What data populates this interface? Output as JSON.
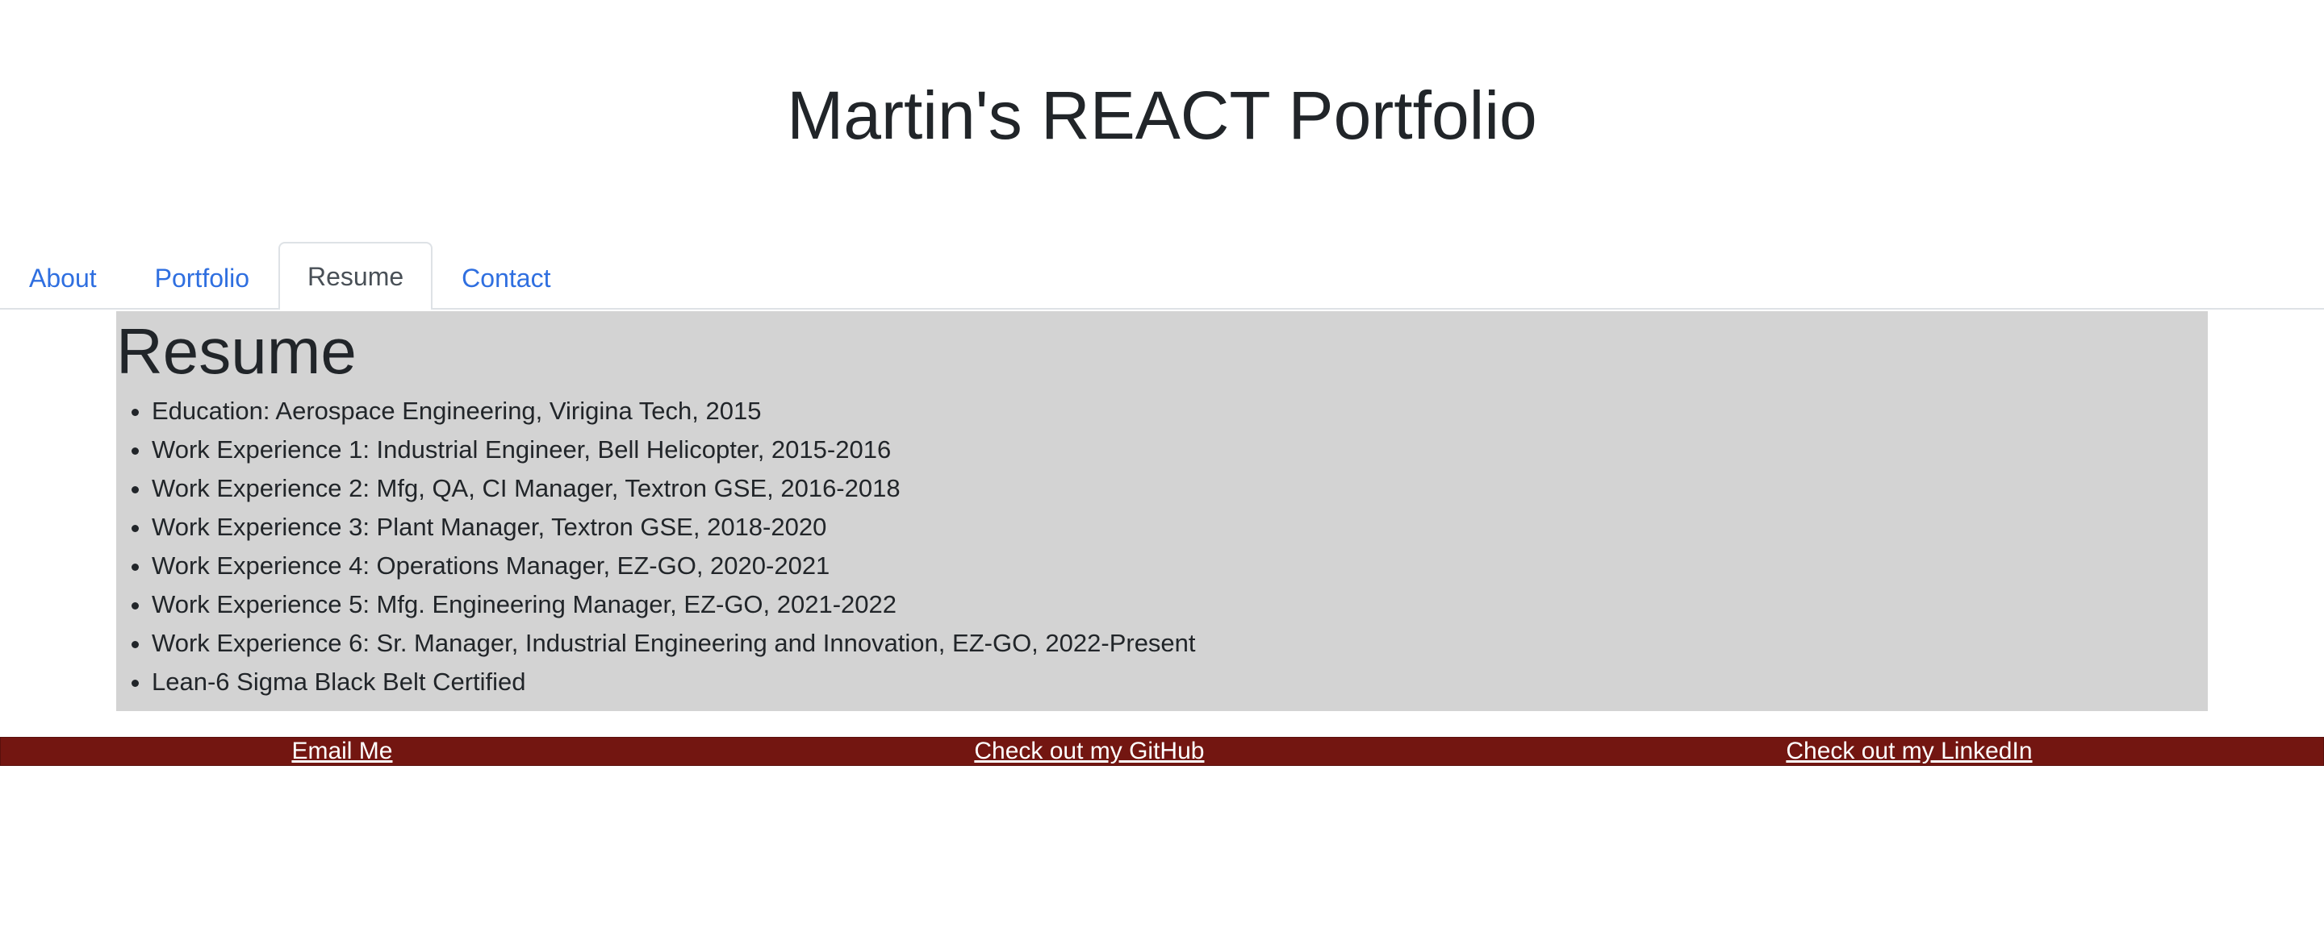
{
  "header": {
    "title": "Martin's REACT Portfolio"
  },
  "nav": {
    "tabs": [
      {
        "label": "About",
        "active": false
      },
      {
        "label": "Portfolio",
        "active": false
      },
      {
        "label": "Resume",
        "active": true
      },
      {
        "label": "Contact",
        "active": false
      }
    ]
  },
  "resume": {
    "heading": "Resume",
    "items": [
      "Education: Aerospace Engineering, Virigina Tech, 2015",
      "Work Experience 1: Industrial Engineer, Bell Helicopter, 2015-2016",
      "Work Experience 2: Mfg, QA, CI Manager, Textron GSE, 2016-2018",
      "Work Experience 3: Plant Manager, Textron GSE, 2018-2020",
      "Work Experience 4: Operations Manager, EZ-GO, 2020-2021",
      "Work Experience 5: Mfg. Engineering Manager, EZ-GO, 2021-2022",
      "Work Experience 6: Sr. Manager, Industrial Engineering and Innovation, EZ-GO, 2022-Present",
      "Lean-6 Sigma Black Belt Certified"
    ]
  },
  "footer": {
    "email_label": "Email Me",
    "github_label": "Check out my GitHub",
    "linkedin_label": "Check out my LinkedIn"
  },
  "colors": {
    "link": "#2f6fe0",
    "section_background": "#d3d3d3",
    "footer_background": "#731611"
  }
}
